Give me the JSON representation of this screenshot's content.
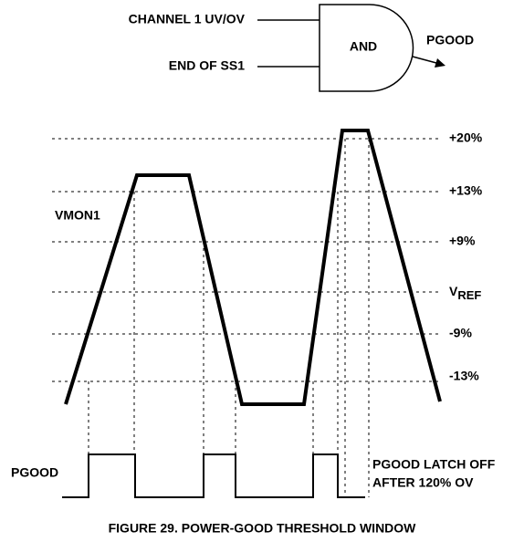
{
  "gate": {
    "inputs": [
      "CHANNEL 1 UV/OV",
      "END OF SS1"
    ],
    "label": "AND",
    "output": "PGOOD"
  },
  "waveform": {
    "label": "VMON1",
    "thresholds": [
      "+20%",
      "+13%",
      "+9%",
      {
        "main": "V",
        "sub": "REF"
      },
      "-9%",
      "-13%"
    ]
  },
  "pgood": {
    "label": "PGOOD",
    "note": [
      "PGOOD LATCH OFF",
      "AFTER 120% OV"
    ]
  },
  "caption": "FIGURE 29.  POWER-GOOD THRESHOLD WINDOW"
}
